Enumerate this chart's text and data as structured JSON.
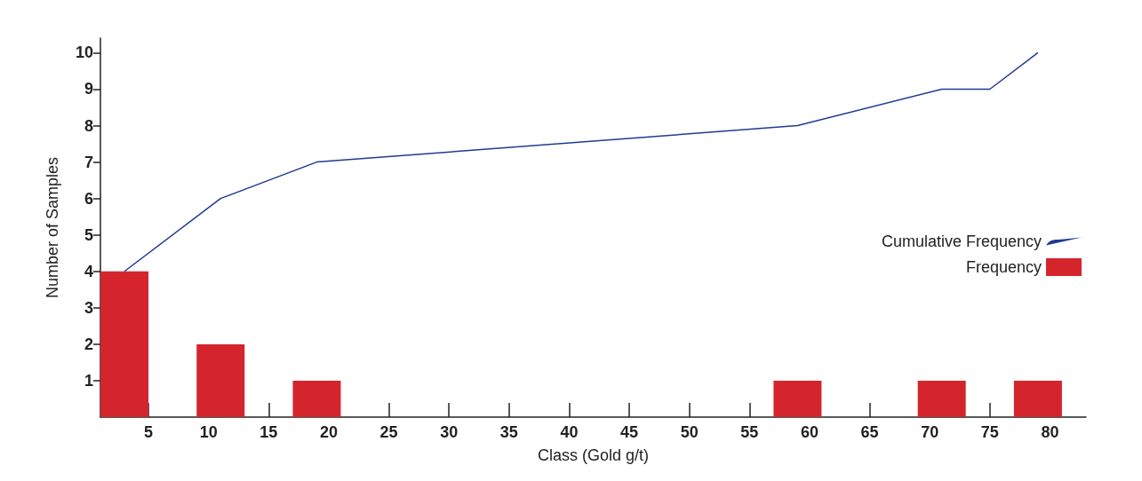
{
  "chart_data": {
    "type": "bar",
    "xlabel": "Class (Gold g/t)",
    "ylabel": "Number of Samples",
    "xlim": [
      1,
      83
    ],
    "xticks": [
      5,
      10,
      15,
      20,
      25,
      30,
      35,
      40,
      45,
      50,
      55,
      60,
      65,
      70,
      75,
      80
    ],
    "ylim": [
      0,
      10.4
    ],
    "yticks": [
      1,
      2,
      3,
      4,
      5,
      6,
      7,
      8,
      9,
      10
    ],
    "series": [
      {
        "name": "Cumulative Frequency",
        "type": "line",
        "color": "#1f3a93",
        "x": [
          3,
          11,
          19,
          59,
          71,
          75,
          79
        ],
        "values": [
          4,
          6,
          7,
          8,
          9,
          9,
          10
        ]
      },
      {
        "name": "Frequency",
        "color": "#d4252c",
        "x": [
          3,
          11,
          19,
          59,
          71,
          79
        ],
        "values": [
          4,
          2,
          1,
          1,
          1,
          1
        ]
      }
    ],
    "grid": false,
    "legend": "right",
    "marker": "none"
  }
}
